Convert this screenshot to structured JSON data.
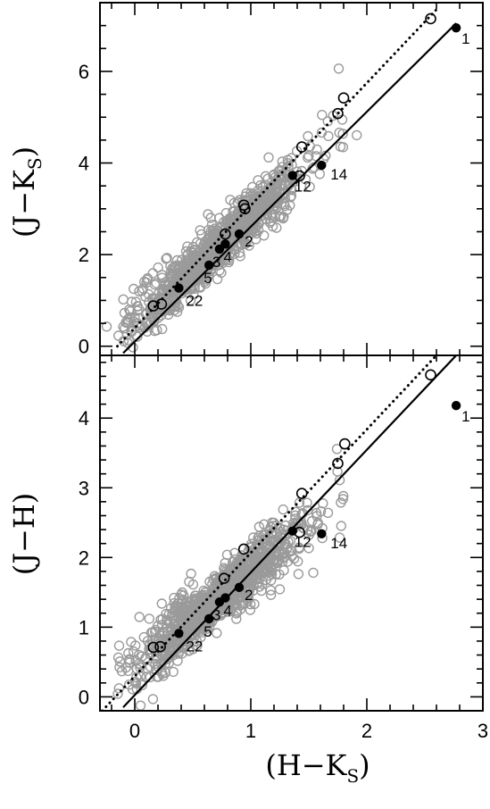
{
  "chart_data": [
    {
      "type": "scatter",
      "panel": "top",
      "xlabel_parts": [
        "(H−K",
        "S",
        ")"
      ],
      "ylabel_parts": [
        "(J−K",
        "S",
        ")"
      ],
      "xlim": [
        -0.3,
        3.0
      ],
      "ylim": [
        -0.2,
        7.5
      ],
      "yticks": [
        0,
        2,
        4,
        6
      ],
      "xticks": [
        0,
        1,
        2,
        3
      ],
      "lines": [
        {
          "style": "solid",
          "x": [
            -0.1,
            2.77
          ],
          "y": [
            -0.15,
            7.05
          ]
        },
        {
          "style": "dotted",
          "x": [
            -0.15,
            2.6
          ],
          "y": [
            0.0,
            7.35
          ]
        }
      ],
      "field_stars_color": "#9a9a9a",
      "cloud_seed": 11,
      "open_points": [
        {
          "x": 0.16,
          "y": 0.88
        },
        {
          "x": 0.23,
          "y": 0.92
        },
        {
          "x": 0.78,
          "y": 2.45
        },
        {
          "x": 0.95,
          "y": 3.0
        },
        {
          "x": 0.94,
          "y": 3.08
        },
        {
          "x": 1.42,
          "y": 3.72
        },
        {
          "x": 1.44,
          "y": 4.35
        },
        {
          "x": 1.75,
          "y": 5.08
        },
        {
          "x": 1.8,
          "y": 5.42
        },
        {
          "x": 2.55,
          "y": 7.15
        }
      ],
      "filled_points": [
        {
          "x": 2.77,
          "y": 6.95,
          "label": "1"
        },
        {
          "x": 1.61,
          "y": 3.95,
          "label": "14"
        },
        {
          "x": 1.36,
          "y": 3.73,
          "label": "12"
        },
        {
          "x": 0.9,
          "y": 2.45,
          "label": "2"
        },
        {
          "x": 0.78,
          "y": 2.23,
          "label": "4"
        },
        {
          "x": 0.73,
          "y": 2.12,
          "label": "3"
        },
        {
          "x": 0.64,
          "y": 1.77,
          "label": "5"
        },
        {
          "x": 0.38,
          "y": 1.27,
          "label": "22"
        }
      ]
    },
    {
      "type": "scatter",
      "panel": "bottom",
      "xlabel_parts": [
        "(H−K",
        "S",
        ")"
      ],
      "ylabel": "(J−H)",
      "xlim": [
        -0.3,
        3.0
      ],
      "ylim": [
        -0.2,
        4.9
      ],
      "yticks": [
        0,
        1,
        2,
        3,
        4
      ],
      "xticks": [
        0,
        1,
        2,
        3
      ],
      "xtick_labels": [
        "0",
        "1",
        "2",
        "3"
      ],
      "lines": [
        {
          "style": "solid",
          "x": [
            -0.1,
            2.77
          ],
          "y": [
            -0.15,
            4.9
          ]
        },
        {
          "style": "dotted",
          "x": [
            -0.28,
            2.6
          ],
          "y": [
            -0.2,
            4.9
          ]
        }
      ],
      "field_stars_color": "#9a9a9a",
      "cloud_seed": 23,
      "open_points": [
        {
          "x": 0.16,
          "y": 0.71
        },
        {
          "x": 0.22,
          "y": 0.72
        },
        {
          "x": 0.77,
          "y": 1.7
        },
        {
          "x": 0.94,
          "y": 2.12
        },
        {
          "x": 1.42,
          "y": 2.36
        },
        {
          "x": 1.44,
          "y": 2.92
        },
        {
          "x": 1.75,
          "y": 3.35
        },
        {
          "x": 1.81,
          "y": 3.63
        },
        {
          "x": 2.55,
          "y": 4.62
        }
      ],
      "filled_points": [
        {
          "x": 2.77,
          "y": 4.18,
          "label": "1"
        },
        {
          "x": 1.61,
          "y": 2.34,
          "label": "14"
        },
        {
          "x": 1.36,
          "y": 2.38,
          "label": "12"
        },
        {
          "x": 0.9,
          "y": 1.57,
          "label": "2"
        },
        {
          "x": 0.78,
          "y": 1.42,
          "label": "4"
        },
        {
          "x": 0.73,
          "y": 1.36,
          "label": "3"
        },
        {
          "x": 0.64,
          "y": 1.12,
          "label": "5"
        },
        {
          "x": 0.38,
          "y": 0.91,
          "label": "22"
        }
      ]
    }
  ]
}
